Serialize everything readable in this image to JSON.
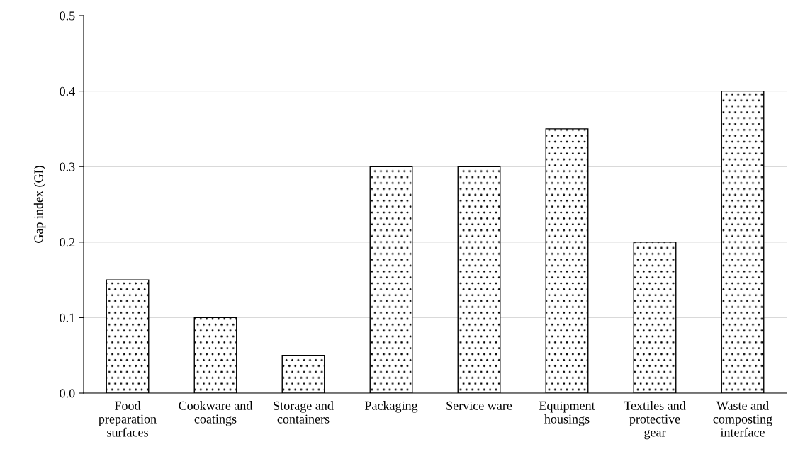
{
  "chart_data": {
    "type": "bar",
    "ylabel": "Gap index (GI)",
    "categories": [
      "Food preparation surfaces",
      "Cookware and coatings",
      "Storage and containers",
      "Packaging",
      "Service ware",
      "Equipment housings",
      "Textiles and protective gear",
      "Waste and composting interface"
    ],
    "values": [
      0.15,
      0.1,
      0.05,
      0.3,
      0.3,
      0.35,
      0.2,
      0.4
    ],
    "color": "#000000",
    "ylim": [
      0,
      0.5
    ],
    "yticks": [
      {
        "value": 0,
        "label": "0.0"
      },
      {
        "value": 0.1,
        "label": "0.1"
      },
      {
        "value": 0.2,
        "label": "0.2"
      },
      {
        "value": 0.3,
        "label": "0.3"
      },
      {
        "value": 0.4,
        "label": "0.4"
      },
      {
        "value": 0.5,
        "label": "0.5"
      }
    ],
    "grid": "y",
    "legend": false
  }
}
